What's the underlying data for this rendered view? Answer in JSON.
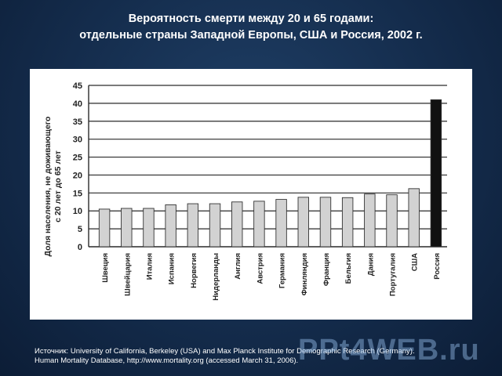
{
  "slide": {
    "title_line1": "Вероятность смерти между 20 и 65 годами:",
    "title_line2": "отдельные страны Западной Европы, США и Россия, 2002 г.",
    "source_line1": "Источник: University of California, Berkeley (USA) and Max Planck Institute for Demographic Research (Germany).",
    "source_line2": "Human Mortality Database, http://www.mortality.org (accessed March 31, 2006).",
    "watermark": "PPt4WEB.ru"
  },
  "chart_data": {
    "type": "bar",
    "title": "",
    "xlabel": "",
    "ylabel": "Доля населения, не доживающего с 20 лет до 65 лет",
    "ylabel_line1": "Доля населения, не доживающего",
    "ylabel_line2": "с 20 лет до 65 лет",
    "ylim": [
      0,
      45
    ],
    "yticks": [
      0,
      5,
      10,
      15,
      20,
      25,
      30,
      35,
      40,
      45
    ],
    "grid": true,
    "categories": [
      "Швеция",
      "Швейцария",
      "Италия",
      "Испания",
      "Норвегия",
      "Нидерланды",
      "Англия",
      "Австрия",
      "Германия",
      "Финляндия",
      "Франция",
      "Бельгия",
      "Дания",
      "Португалия",
      "США",
      "Россия"
    ],
    "values": [
      10.5,
      10.7,
      10.7,
      11.7,
      12.0,
      12.0,
      12.5,
      12.7,
      13.2,
      13.8,
      13.8,
      13.7,
      14.7,
      14.5,
      16.2,
      41.0
    ],
    "bar_color": "#d2d2d2",
    "highlight_color": "#111111",
    "highlight_category": "Россия"
  }
}
